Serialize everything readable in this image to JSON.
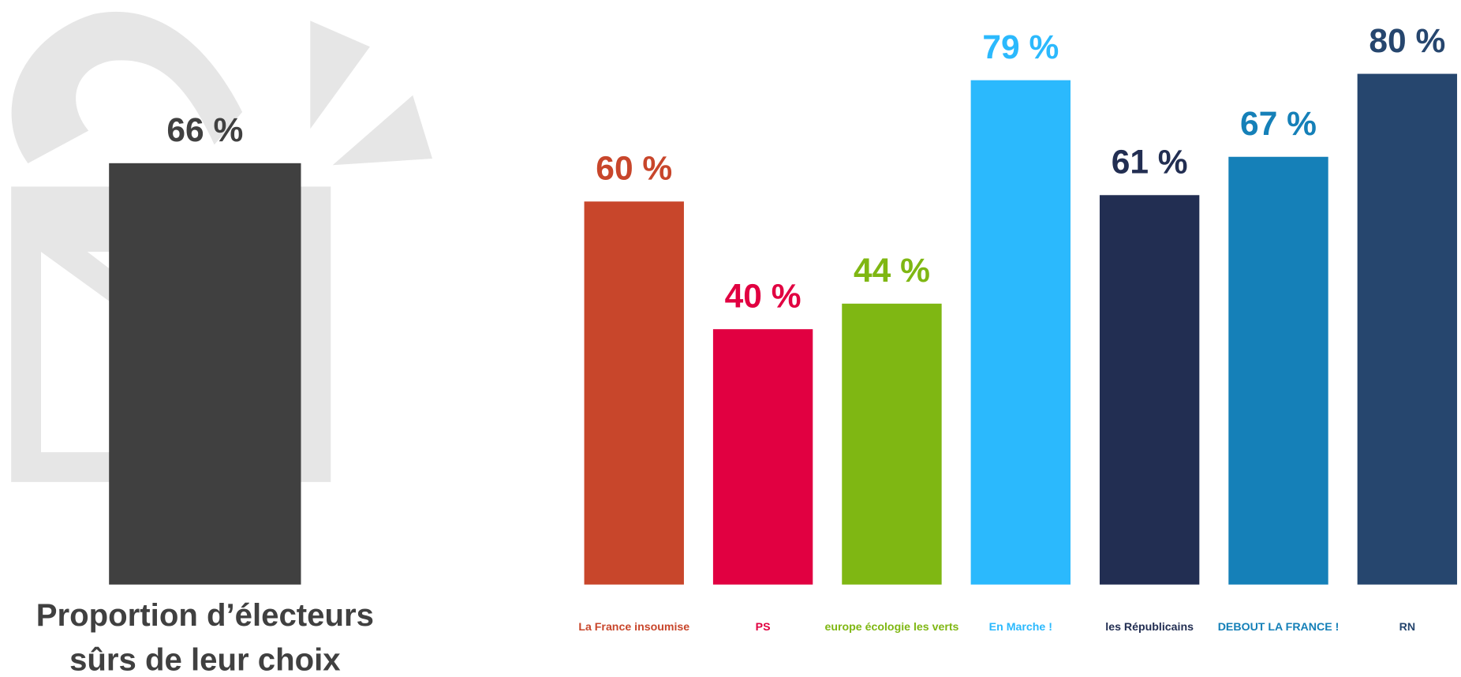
{
  "chart_data": [
    {
      "type": "bar",
      "categories": [
        null
      ],
      "values": [
        66
      ],
      "value_labels": [
        "66 %"
      ],
      "colors": [
        "#404040"
      ],
      "label_colors": [
        "#404040"
      ],
      "x_label": [
        "Proportion d’électeurs",
        "sûrs de leur choix"
      ],
      "ylim": [
        0,
        80
      ]
    },
    {
      "type": "bar",
      "categories": [
        "La France insoumise",
        "PS",
        "europe écologie les verts",
        "En Marche !",
        "les Républicains",
        "DEBOUT LA FRANCE !",
        "RN"
      ],
      "values": [
        60,
        40,
        44,
        79,
        61,
        67,
        80
      ],
      "value_labels": [
        "60 %",
        "40 %",
        "44 %",
        "79 %",
        "61 %",
        "67 %",
        "80 %"
      ],
      "colors": [
        "#c8462b",
        "#e10041",
        "#7fb713",
        "#2bb9fd",
        "#222e52",
        "#1580b8",
        "#26466e"
      ],
      "label_colors": [
        "#c8462b",
        "#e10041",
        "#7fb713",
        "#2bb9fd",
        "#222e52",
        "#1580b8",
        "#26466e"
      ],
      "ylim": [
        0,
        80
      ]
    }
  ]
}
